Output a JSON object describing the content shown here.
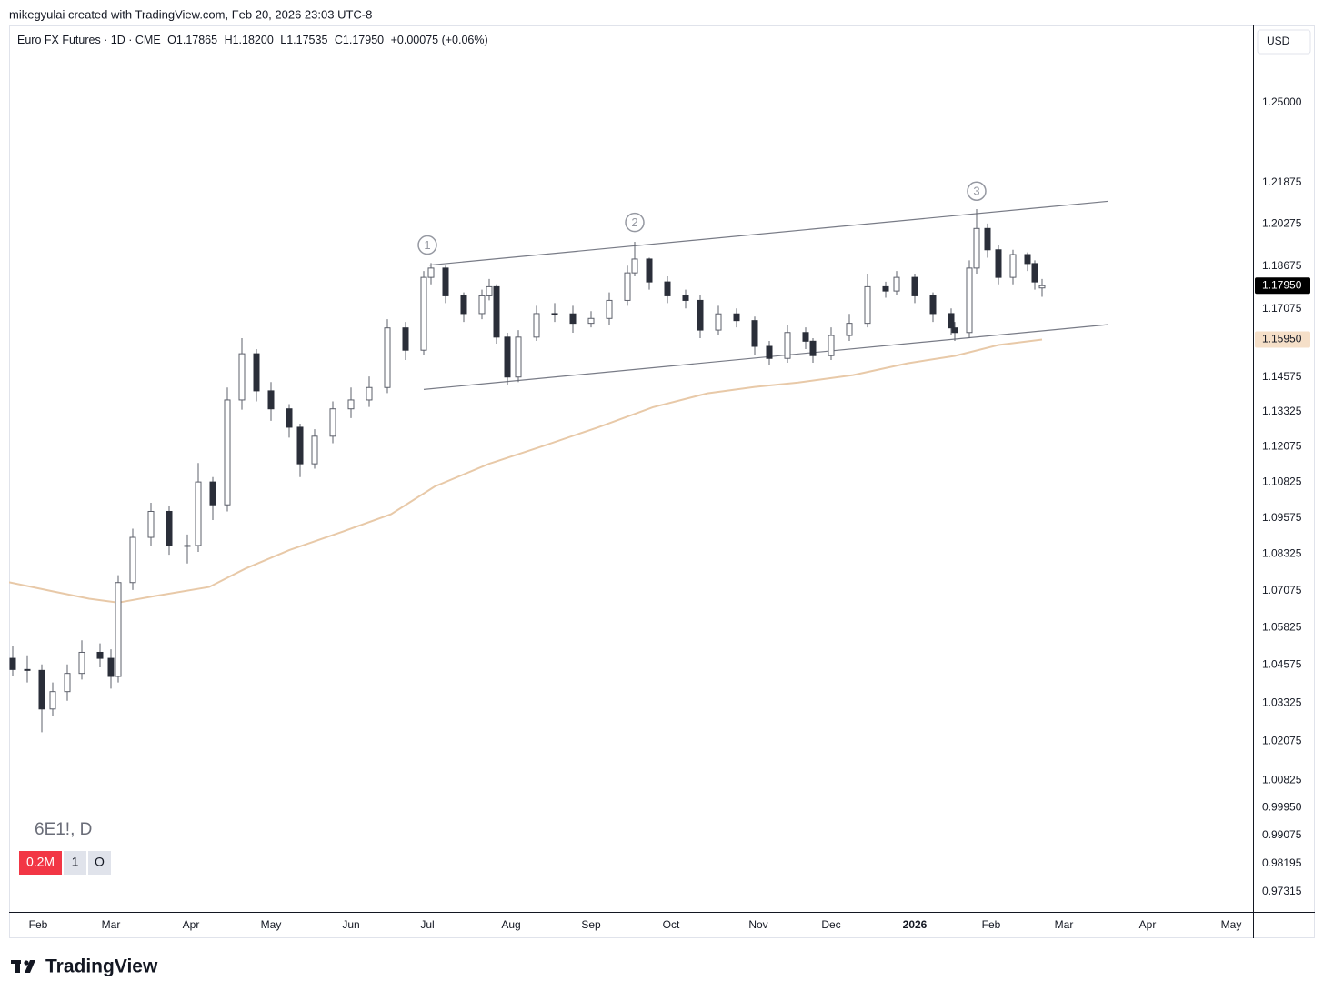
{
  "header": {
    "credit": "mikegyulai created with TradingView.com, Feb 20, 2026 23:03 UTC-8"
  },
  "chart_data": {
    "type": "candlestick",
    "symbol": "Euro FX Futures · 1D · CME",
    "ohlc_legend": [
      "O1.17865",
      "H1.18200",
      "L1.17535",
      "C1.17950",
      "+0.00075 (+0.06%)"
    ],
    "currency": "USD",
    "watermark": "6E1!, D",
    "badges": [
      "0.2M",
      "1",
      "O"
    ],
    "up_color": "#ffffff",
    "down_color": "#2a2e39",
    "log_scale": true,
    "grid": false,
    "xlim": [
      0,
      342
    ],
    "ylim": [
      0.967,
      1.281
    ],
    "x": [
      1,
      5,
      9,
      12,
      16,
      20,
      25,
      28,
      30,
      34,
      39,
      44,
      49,
      52,
      56,
      60,
      64,
      68,
      72,
      77,
      80,
      84,
      89,
      94,
      99,
      104,
      109,
      114,
      116,
      120,
      125,
      130,
      132,
      134,
      137,
      140,
      145,
      150,
      155,
      160,
      165,
      170,
      172,
      176,
      181,
      186,
      190,
      195,
      200,
      205,
      209,
      214,
      219,
      221,
      226,
      231,
      236,
      241,
      244,
      249,
      254,
      259,
      260,
      264,
      266,
      269,
      272,
      276,
      280,
      282,
      284
    ],
    "open": [
      1.048,
      1.0443,
      1.044,
      1.0313,
      1.037,
      1.043,
      1.05,
      1.048,
      1.042,
      1.0735,
      1.089,
      1.098,
      1.0862,
      1.0862,
      1.1083,
      1.1003,
      1.1375,
      1.1543,
      1.1408,
      1.1343,
      1.1277,
      1.1147,
      1.1245,
      1.1343,
      1.1375,
      1.142,
      1.1638,
      1.1556,
      1.1826,
      1.1861,
      1.1757,
      1.1691,
      1.1757,
      1.1791,
      1.1604,
      1.1458,
      1.1604,
      1.1691,
      1.169,
      1.1655,
      1.1673,
      1.174,
      1.1843,
      1.1895,
      1.1809,
      1.1757,
      1.174,
      1.163,
      1.169,
      1.1665,
      1.157,
      1.1526,
      1.1621,
      1.1589,
      1.1536,
      1.161,
      1.1655,
      1.1791,
      1.1775,
      1.1826,
      1.1757,
      1.1691,
      1.1638,
      1.1621,
      1.1861,
      1.2011,
      1.193,
      1.1826,
      1.1912,
      1.1878,
      1.17865
    ],
    "high": [
      1.052,
      1.049,
      1.046,
      1.04,
      1.046,
      1.054,
      1.053,
      1.051,
      1.076,
      1.092,
      1.101,
      1.1,
      1.09,
      1.115,
      1.11,
      1.142,
      1.16,
      1.156,
      1.144,
      1.136,
      1.129,
      1.127,
      1.137,
      1.142,
      1.146,
      1.167,
      1.166,
      1.185,
      1.188,
      1.187,
      1.177,
      1.178,
      1.182,
      1.18,
      1.162,
      1.163,
      1.172,
      1.173,
      1.172,
      1.17,
      1.177,
      1.187,
      1.196,
      1.19,
      1.183,
      1.178,
      1.176,
      1.172,
      1.171,
      1.168,
      1.159,
      1.165,
      1.164,
      1.16,
      1.164,
      1.169,
      1.184,
      1.181,
      1.185,
      1.184,
      1.177,
      1.171,
      1.166,
      1.189,
      1.2085,
      1.203,
      1.195,
      1.193,
      1.192,
      1.189,
      1.182
    ],
    "low": [
      1.042,
      1.04,
      1.0237,
      1.029,
      1.034,
      1.041,
      1.045,
      1.038,
      1.04,
      1.071,
      1.086,
      1.083,
      1.08,
      1.084,
      1.095,
      1.098,
      1.134,
      1.137,
      1.13,
      1.124,
      1.11,
      1.113,
      1.122,
      1.131,
      1.135,
      1.14,
      1.152,
      1.154,
      1.18,
      1.173,
      1.166,
      1.167,
      1.174,
      1.158,
      1.143,
      1.144,
      1.159,
      1.166,
      1.162,
      1.164,
      1.165,
      1.172,
      1.183,
      1.178,
      1.173,
      1.171,
      1.16,
      1.161,
      1.164,
      1.154,
      1.15,
      1.151,
      1.156,
      1.151,
      1.152,
      1.159,
      1.164,
      1.175,
      1.176,
      1.173,
      1.166,
      1.161,
      1.159,
      1.16,
      1.184,
      1.19,
      1.18,
      1.18,
      1.185,
      1.178,
      1.17535
    ],
    "close": [
      1.0443,
      1.044,
      1.0313,
      1.037,
      1.043,
      1.05,
      1.048,
      1.042,
      1.0735,
      1.089,
      1.098,
      1.0862,
      1.0862,
      1.1083,
      1.1003,
      1.1375,
      1.1543,
      1.1408,
      1.1343,
      1.1277,
      1.1147,
      1.1245,
      1.1343,
      1.1375,
      1.142,
      1.1638,
      1.1556,
      1.1826,
      1.1861,
      1.1757,
      1.1691,
      1.1757,
      1.1791,
      1.1604,
      1.1458,
      1.1604,
      1.1691,
      1.169,
      1.1655,
      1.1673,
      1.174,
      1.1843,
      1.1895,
      1.1809,
      1.1757,
      1.174,
      1.163,
      1.169,
      1.1665,
      1.157,
      1.1526,
      1.1621,
      1.1589,
      1.1536,
      1.161,
      1.1655,
      1.1791,
      1.1775,
      1.1826,
      1.1757,
      1.1691,
      1.1638,
      1.1621,
      1.1861,
      1.2011,
      1.193,
      1.1826,
      1.1912,
      1.1878,
      1.1809,
      1.1795
    ],
    "ma": {
      "color": "#e8c9a8",
      "x": [
        0,
        12,
        22,
        30,
        40,
        55,
        65,
        77,
        92,
        105,
        117,
        132,
        147,
        162,
        177,
        192,
        205,
        217,
        232,
        247,
        260,
        272,
        284
      ],
      "values": [
        1.0736,
        1.0705,
        1.068,
        1.0667,
        1.0689,
        1.072,
        1.0783,
        1.0846,
        1.0911,
        1.097,
        1.1067,
        1.1147,
        1.1211,
        1.1277,
        1.1349,
        1.1399,
        1.1422,
        1.1438,
        1.1465,
        1.1508,
        1.1535,
        1.1575,
        1.1595
      ]
    },
    "trendlines": [
      {
        "color": "#787b86",
        "x": [
          115.5,
          302
        ],
        "values": [
          1.1872,
          1.2115
        ]
      },
      {
        "color": "#787b86",
        "x": [
          114,
          302
        ],
        "values": [
          1.1413,
          1.165
        ]
      }
    ],
    "annotations": [
      {
        "text": "1",
        "x": 115,
        "price": 1.1948
      },
      {
        "text": "2",
        "x": 172,
        "price": 1.2034
      },
      {
        "text": "3",
        "x": 266,
        "price": 1.2154
      }
    ],
    "price_markers": [
      {
        "value": 1.1795,
        "label": "1.17950",
        "color": "#000000",
        "text_color": "#ffffff"
      },
      {
        "value": 1.1595,
        "label": "1.15950",
        "color": "#f5dfc8",
        "text_color": "#131722"
      }
    ],
    "yticks": [
      {
        "value": 1.25,
        "label": "1.25000"
      },
      {
        "value": 1.21875,
        "label": "1.21875"
      },
      {
        "value": 1.20275,
        "label": "1.20275"
      },
      {
        "value": 1.18675,
        "label": "1.18675"
      },
      {
        "value": 1.17075,
        "label": "1.17075"
      },
      {
        "value": 1.14575,
        "label": "1.14575"
      },
      {
        "value": 1.13325,
        "label": "1.13325"
      },
      {
        "value": 1.12075,
        "label": "1.12075"
      },
      {
        "value": 1.10825,
        "label": "1.10825"
      },
      {
        "value": 1.09575,
        "label": "1.09575"
      },
      {
        "value": 1.08325,
        "label": "1.08325"
      },
      {
        "value": 1.07075,
        "label": "1.07075"
      },
      {
        "value": 1.05825,
        "label": "1.05825"
      },
      {
        "value": 1.04575,
        "label": "1.04575"
      },
      {
        "value": 1.03325,
        "label": "1.03325"
      },
      {
        "value": 1.02075,
        "label": "1.02075"
      },
      {
        "value": 1.00825,
        "label": "1.00825"
      },
      {
        "value": 0.9995,
        "label": "0.99950"
      },
      {
        "value": 0.99075,
        "label": "0.99075"
      },
      {
        "value": 0.98195,
        "label": "0.98195"
      },
      {
        "value": 0.97315,
        "label": "0.97315"
      }
    ],
    "xticks": [
      {
        "value": 8,
        "label": "Feb"
      },
      {
        "value": 28,
        "label": "Mar"
      },
      {
        "value": 50,
        "label": "Apr"
      },
      {
        "value": 72,
        "label": "May"
      },
      {
        "value": 94,
        "label": "Jun"
      },
      {
        "value": 115,
        "label": "Jul"
      },
      {
        "value": 138,
        "label": "Aug"
      },
      {
        "value": 160,
        "label": "Sep"
      },
      {
        "value": 182,
        "label": "Oct"
      },
      {
        "value": 206,
        "label": "Nov"
      },
      {
        "value": 226,
        "label": "Dec"
      },
      {
        "value": 249,
        "label": "2026"
      },
      {
        "value": 270,
        "label": "Feb"
      },
      {
        "value": 290,
        "label": "Mar"
      },
      {
        "value": 313,
        "label": "Apr"
      },
      {
        "value": 336,
        "label": "May"
      }
    ]
  },
  "footer": {
    "brand": "TradingView"
  }
}
